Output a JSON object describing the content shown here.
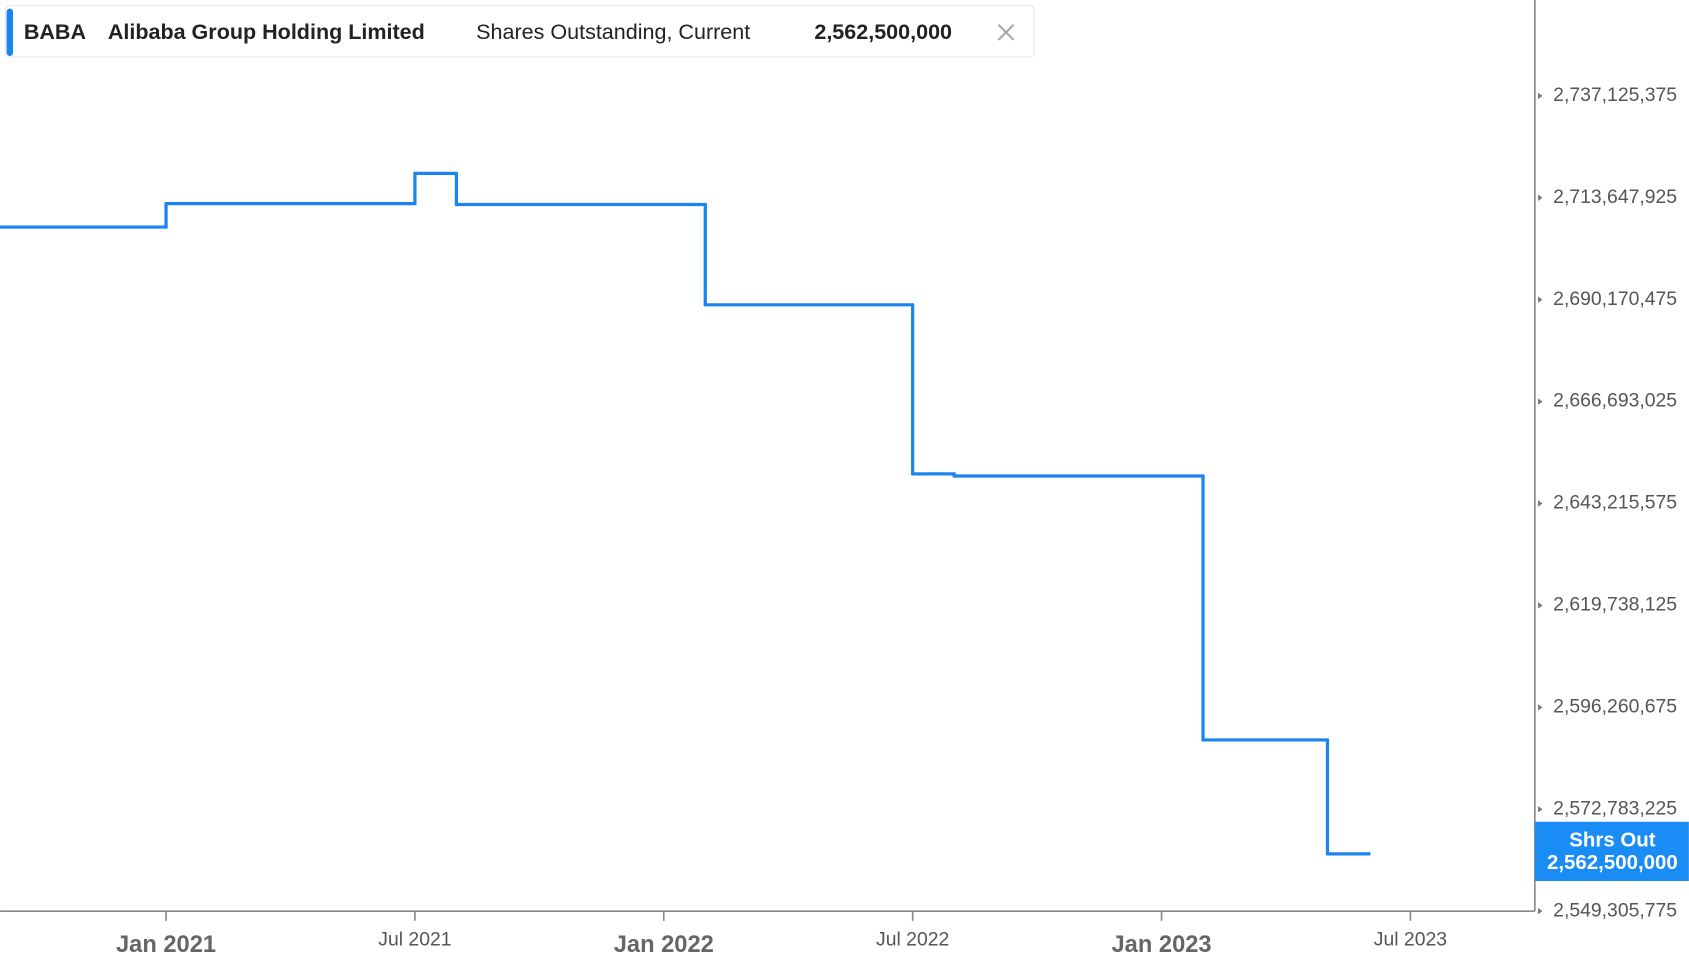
{
  "header": {
    "ticker": "BABA",
    "company": "Alibaba Group Holding Limited",
    "metric": "Shares Outstanding, Current",
    "value": "2,562,500,000"
  },
  "badge": {
    "title": "Shrs Out",
    "value": "2,562,500,000"
  },
  "chart_data": {
    "type": "step-line",
    "x": [
      "2020-09",
      "2021-01",
      "2021-07",
      "2021-08",
      "2022-02",
      "2022-07",
      "2022-08",
      "2023-02",
      "2023-05",
      "2023-06"
    ],
    "series": [
      {
        "name": "Shrs Out",
        "color": "#1a84f0",
        "values": [
          2706900000,
          2712300000,
          2719270000,
          2712100000,
          2688990000,
          2650040000,
          2649540000,
          2588750000,
          2562500000,
          2562500000
        ]
      }
    ],
    "xlim": [
      "2020-09",
      "2023-10"
    ],
    "xticks": [
      {
        "value": "2021-01",
        "label": "Jan 2021"
      },
      {
        "value": "2021-07",
        "label": "Jul 2021"
      },
      {
        "value": "2022-01",
        "label": "Jan 2022"
      },
      {
        "value": "2022-07",
        "label": "Jul 2022"
      },
      {
        "value": "2023-01",
        "label": "Jan 2023"
      },
      {
        "value": "2023-07",
        "label": "Jul 2023"
      }
    ],
    "ylim": [
      2549305775,
      2759208775
    ],
    "yticks": [
      {
        "value": 2549305775,
        "label": "2,549,305,775"
      },
      {
        "value": 2572783225,
        "label": "2,572,783,225"
      },
      {
        "value": 2596260675,
        "label": "2,596,260,675"
      },
      {
        "value": 2619738125,
        "label": "2,619,738,125"
      },
      {
        "value": 2643215575,
        "label": "2,643,215,575"
      },
      {
        "value": 2666693025,
        "label": "2,666,693,025"
      },
      {
        "value": 2690170475,
        "label": "2,690,170,475"
      },
      {
        "value": 2713647925,
        "label": "2,713,647,925"
      },
      {
        "value": 2737125375,
        "label": "2,737,125,375"
      }
    ],
    "grid": false
  }
}
